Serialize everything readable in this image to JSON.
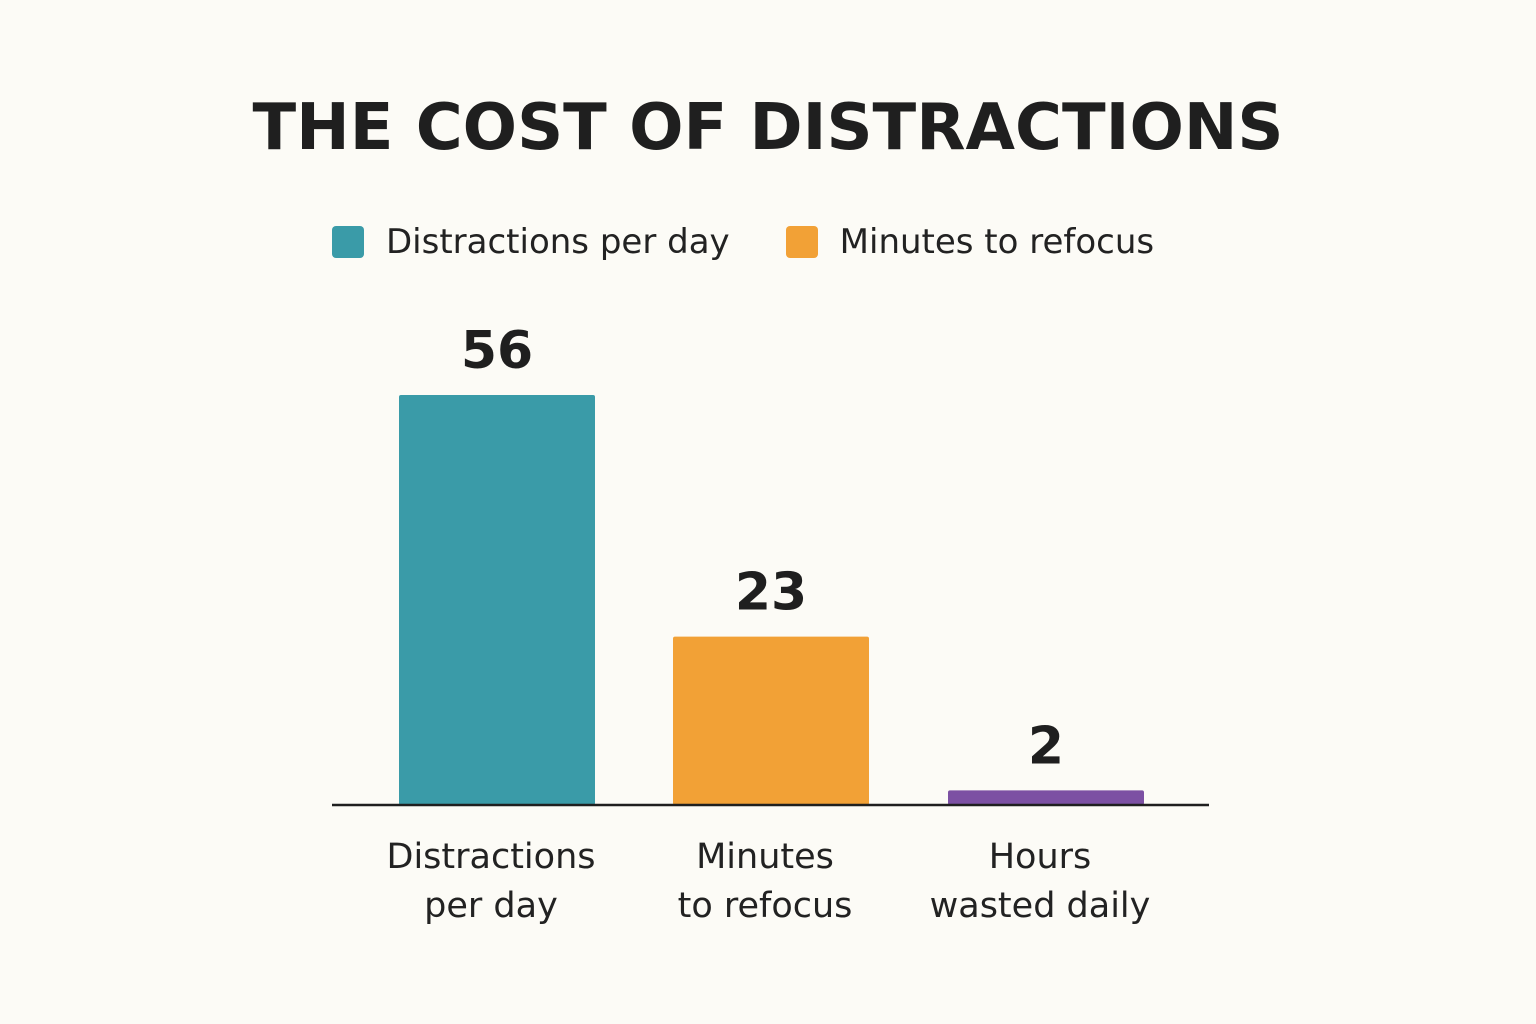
{
  "chart_data": {
    "type": "bar",
    "title": "THE COST OF DISTRACTIONS",
    "xlabel": "",
    "ylabel": "",
    "grid": false,
    "legend_position": "top",
    "legend": [
      {
        "label": "Distractions per day",
        "color": "#3a9ba8"
      },
      {
        "label": "Minutes to refocus",
        "color": "#f2a136"
      }
    ],
    "categories": [
      [
        "Distractions",
        "per day"
      ],
      [
        "Minutes",
        "to refocus"
      ],
      [
        "Hours",
        "wasted daily"
      ]
    ],
    "values": [
      56,
      23,
      2
    ],
    "value_labels": [
      "56",
      "23",
      "2"
    ],
    "bar_colors": [
      "#3a9ba8",
      "#f2a136",
      "#7c50a3"
    ]
  }
}
